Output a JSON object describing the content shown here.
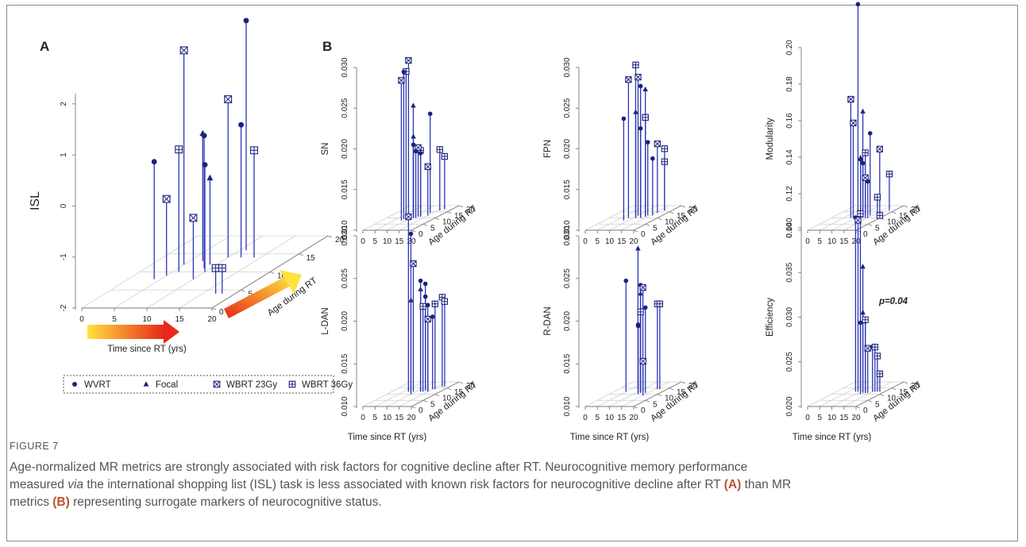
{
  "panel_labels": {
    "a": "A",
    "b": "B"
  },
  "colors": {
    "marker": "#1a237e",
    "stem": "#2a35b8",
    "arrow_start": "#ffe23c",
    "arrow_end": "#e8281a"
  },
  "legend": {
    "items": [
      {
        "symbol": "filled-circle",
        "label": "WVRT"
      },
      {
        "symbol": "filled-triangle",
        "label": "Focal"
      },
      {
        "symbol": "boxed-x",
        "label": "WBRT 23Gy"
      },
      {
        "symbol": "boxed-plus",
        "label": "WBRT 36Gy"
      }
    ]
  },
  "annotation": "p=0.04",
  "caption": {
    "figure_label": "FIGURE 7",
    "line1": "Age-normalized MR metrics are strongly associated with risk factors for cognitive decline after RT. Neurocognitive memory performance",
    "line2_a": "measured ",
    "line2_via": "via",
    "line2_b": " the international shopping list (ISL) task is less associated with known risk factors for neurocognitive decline after RT ",
    "line2_A": "(A)",
    "line2_c": " than MR",
    "line3_a": "metrics ",
    "line3_B": "(B)",
    "line3_b": " representing surrogate markers of neurocognitive status."
  },
  "chart_data": [
    {
      "type": "scatter3d",
      "panel": "A",
      "zlabel": "ISL",
      "xlabel": "Time since RT (yrs)",
      "ylabel": "Age during RT",
      "xticks": [
        "0",
        "5",
        "10",
        "15",
        "20"
      ],
      "yticks": [
        "0",
        "5",
        "10",
        "15",
        "20"
      ],
      "zticks": [
        "-2",
        "-1",
        "0",
        "1",
        "2"
      ],
      "zlim": [
        -2,
        2.2
      ],
      "points": [
        {
          "x": 5,
          "y": 12,
          "z": 2.2,
          "g": "WBRT 23Gy"
        },
        {
          "x": 4,
          "y": 8,
          "z": 0.3,
          "g": "WVRT"
        },
        {
          "x": 6,
          "y": 10,
          "z": 0.4,
          "g": "WBRT 36Gy"
        },
        {
          "x": 7,
          "y": 13,
          "z": 0.5,
          "g": "Focal"
        },
        {
          "x": 5,
          "y": 9,
          "z": -0.5,
          "g": "WBRT 23Gy"
        },
        {
          "x": 9,
          "y": 12,
          "z": -0.3,
          "g": "Focal"
        },
        {
          "x": 9,
          "y": 11,
          "z": 0.6,
          "g": "WVRT"
        },
        {
          "x": 10,
          "y": 10,
          "z": 0.1,
          "g": "WVRT"
        },
        {
          "x": 10,
          "y": 14,
          "z": 1.1,
          "g": "WBRT 23Gy"
        },
        {
          "x": 10,
          "y": 8,
          "z": -0.8,
          "g": "WBRT 23Gy"
        },
        {
          "x": 11,
          "y": 16,
          "z": 2.5,
          "g": "WVRT"
        },
        {
          "x": 12,
          "y": 14,
          "z": 0.6,
          "g": "WVRT"
        },
        {
          "x": 14,
          "y": 14,
          "z": 0.1,
          "g": "WBRT 36Gy"
        },
        {
          "x": 17,
          "y": 4,
          "z": -1.5,
          "g": "WBRT 36Gy"
        },
        {
          "x": 18,
          "y": 4,
          "z": -1.5,
          "g": "WBRT 36Gy"
        }
      ]
    },
    {
      "type": "scatter3d",
      "panel": "B1",
      "zlabel": "SN",
      "xlabel": "",
      "ylabel": "Age during RT",
      "xticks": [
        "0",
        "5",
        "10",
        "15",
        "20"
      ],
      "yticks": [
        "0",
        "5",
        "10",
        "15",
        "20"
      ],
      "zticks": [
        "0.010",
        "0.015",
        "0.020",
        "0.025",
        "0.030"
      ],
      "zlim": [
        0.01,
        0.03
      ],
      "points": [
        {
          "x": 8,
          "y": 8,
          "z": 0.0272,
          "g": "WBRT 23Gy"
        },
        {
          "x": 8,
          "y": 9,
          "z": 0.0281,
          "g": "WVRT"
        },
        {
          "x": 8,
          "y": 10,
          "z": 0.028,
          "g": "WBRT 36Gy"
        },
        {
          "x": 8,
          "y": 11,
          "z": 0.0292,
          "g": "WBRT 23Gy"
        },
        {
          "x": 9,
          "y": 12,
          "z": 0.0235,
          "g": "Focal"
        },
        {
          "x": 11,
          "y": 10,
          "z": 0.02,
          "g": "Focal"
        },
        {
          "x": 11,
          "y": 10,
          "z": 0.019,
          "g": "WVRT"
        },
        {
          "x": 12,
          "y": 10,
          "z": 0.0182,
          "g": "WVRT"
        },
        {
          "x": 12,
          "y": 11,
          "z": 0.0185,
          "g": "WBRT 23Gy"
        },
        {
          "x": 12,
          "y": 12,
          "z": 0.018,
          "g": "WBRT 36Gy"
        },
        {
          "x": 13,
          "y": 11,
          "z": 0.0178,
          "g": "WVRT"
        },
        {
          "x": 14,
          "y": 14,
          "z": 0.0222,
          "g": "WVRT"
        },
        {
          "x": 15,
          "y": 12,
          "z": 0.016,
          "g": "WBRT 23Gy"
        },
        {
          "x": 16,
          "y": 16,
          "z": 0.0175,
          "g": "WBRT 36Gy"
        },
        {
          "x": 17,
          "y": 17,
          "z": 0.0165,
          "g": "WBRT 36Gy"
        }
      ]
    },
    {
      "type": "scatter3d",
      "panel": "B2",
      "zlabel": "FPN",
      "xlabel": "",
      "ylabel": "Age during RT",
      "xticks": [
        "0",
        "5",
        "10",
        "15",
        "20"
      ],
      "yticks": [
        "0",
        "5",
        "10",
        "15",
        "20"
      ],
      "zticks": [
        "0.010",
        "0.015",
        "0.020",
        "0.025",
        "0.030"
      ],
      "zlim": [
        0.01,
        0.03
      ],
      "points": [
        {
          "x": 8,
          "y": 10,
          "z": 0.027,
          "g": "WBRT 23Gy"
        },
        {
          "x": 8,
          "y": 8,
          "z": 0.0225,
          "g": "WVRT"
        },
        {
          "x": 9,
          "y": 12,
          "z": 0.0285,
          "g": "WBRT 36Gy"
        },
        {
          "x": 10,
          "y": 12,
          "z": 0.027,
          "g": "WBRT 23Gy"
        },
        {
          "x": 11,
          "y": 10,
          "z": 0.023,
          "g": "Focal"
        },
        {
          "x": 13,
          "y": 12,
          "z": 0.0255,
          "g": "Focal"
        },
        {
          "x": 13,
          "y": 10,
          "z": 0.0262,
          "g": "WVRT"
        },
        {
          "x": 13,
          "y": 10,
          "z": 0.021,
          "g": "WVRT"
        },
        {
          "x": 14,
          "y": 11,
          "z": 0.0222,
          "g": "WBRT 23Gy"
        },
        {
          "x": 14,
          "y": 11,
          "z": 0.0222,
          "g": "WBRT 36Gy"
        },
        {
          "x": 14,
          "y": 12,
          "z": 0.019,
          "g": "WVRT"
        },
        {
          "x": 16,
          "y": 12,
          "z": 0.017,
          "g": "WVRT"
        },
        {
          "x": 16,
          "y": 14,
          "z": 0.0185,
          "g": "WBRT 23Gy"
        },
        {
          "x": 17,
          "y": 16,
          "z": 0.016,
          "g": "WBRT 36Gy"
        },
        {
          "x": 17,
          "y": 16,
          "z": 0.0176,
          "g": "WBRT 36Gy"
        }
      ]
    },
    {
      "type": "scatter3d",
      "panel": "B3",
      "zlabel": "Modularity",
      "xlabel": "",
      "ylabel": "Age during RT",
      "xticks": [
        "0",
        "5",
        "10",
        "15",
        "20"
      ],
      "yticks": [
        "0",
        "5",
        "10",
        "15",
        "20"
      ],
      "zticks": [
        "0.10",
        "0.12",
        "0.14",
        "0.16",
        "0.18",
        "0.20"
      ],
      "zlim": [
        0.1,
        0.2
      ],
      "points": [
        {
          "x": 8,
          "y": 10,
          "z": 0.165,
          "g": "WBRT 23Gy"
        },
        {
          "x": 8,
          "y": 13,
          "z": 0.215,
          "g": "WVRT"
        },
        {
          "x": 9,
          "y": 10,
          "z": 0.152,
          "g": "WBRT 23Gy"
        },
        {
          "x": 11,
          "y": 12,
          "z": 0.157,
          "g": "Focal"
        },
        {
          "x": 12,
          "y": 10,
          "z": 0.133,
          "g": "Focal"
        },
        {
          "x": 12,
          "y": 10,
          "z": 0.132,
          "g": "WVRT"
        },
        {
          "x": 13,
          "y": 10,
          "z": 0.13,
          "g": "WVRT"
        },
        {
          "x": 13,
          "y": 11,
          "z": 0.135,
          "g": "WBRT 36Gy"
        },
        {
          "x": 14,
          "y": 12,
          "z": 0.145,
          "g": "WVRT"
        },
        {
          "x": 14,
          "y": 10,
          "z": 0.122,
          "g": "WBRT 23Gy"
        },
        {
          "x": 15,
          "y": 10,
          "z": 0.12,
          "g": "WVRT"
        },
        {
          "x": 16,
          "y": 14,
          "z": 0.135,
          "g": "WBRT 23Gy"
        },
        {
          "x": 17,
          "y": 12,
          "z": 0.11,
          "g": "WBRT 36Gy"
        },
        {
          "x": 18,
          "y": 16,
          "z": 0.12,
          "g": "WBRT 36Gy"
        },
        {
          "x": 18,
          "y": 12,
          "z": 0.1,
          "g": "WBRT 36Gy"
        }
      ]
    },
    {
      "type": "scatter3d",
      "panel": "B4",
      "zlabel": "L-DAN",
      "xlabel": "Time since RT (yrs)",
      "ylabel": "Age during RT",
      "xticks": [
        "0",
        "5",
        "10",
        "15",
        "20"
      ],
      "yticks": [
        "0",
        "5",
        "10",
        "15",
        "20"
      ],
      "zticks": [
        "0.010",
        "0.015",
        "0.020",
        "0.025",
        "0.030"
      ],
      "zlim": [
        0.01,
        0.03
      ],
      "points": [
        {
          "x": 7,
          "y": 12,
          "z": 0.0305,
          "g": "WBRT 23Gy"
        },
        {
          "x": 8,
          "y": 12,
          "z": 0.0285,
          "g": "WVRT"
        },
        {
          "x": 9,
          "y": 12,
          "z": 0.025,
          "g": "WBRT 23Gy"
        },
        {
          "x": 10,
          "y": 10,
          "z": 0.021,
          "g": "Focal"
        },
        {
          "x": 12,
          "y": 12,
          "z": 0.022,
          "g": "Focal"
        },
        {
          "x": 12,
          "y": 12,
          "z": 0.023,
          "g": "WVRT"
        },
        {
          "x": 13,
          "y": 13,
          "z": 0.0225,
          "g": "WVRT"
        },
        {
          "x": 13,
          "y": 13,
          "z": 0.021,
          "g": "WVRT"
        },
        {
          "x": 13,
          "y": 12,
          "z": 0.02,
          "g": "WBRT 36Gy"
        },
        {
          "x": 14,
          "y": 13,
          "z": 0.02,
          "g": "WVRT"
        },
        {
          "x": 15,
          "y": 14,
          "z": 0.0185,
          "g": "WVRT"
        },
        {
          "x": 15,
          "y": 12,
          "z": 0.0185,
          "g": "WBRT 23Gy"
        },
        {
          "x": 16,
          "y": 14,
          "z": 0.02,
          "g": "WBRT 36Gy"
        },
        {
          "x": 17,
          "y": 16,
          "z": 0.0205,
          "g": "WBRT 36Gy"
        },
        {
          "x": 18,
          "y": 16,
          "z": 0.02,
          "g": "WBRT 36Gy"
        }
      ]
    },
    {
      "type": "scatter3d",
      "panel": "B5",
      "zlabel": "R-DAN",
      "xlabel": "Time since RT (yrs)",
      "ylabel": "Age during RT",
      "xticks": [
        "0",
        "5",
        "10",
        "15",
        "20"
      ],
      "yticks": [
        "0",
        "5",
        "10",
        "15",
        "20"
      ],
      "zticks": [
        "0.010",
        "0.015",
        "0.020",
        "0.025",
        "0.030"
      ],
      "zlim": [
        0.01,
        0.03
      ],
      "points": [
        {
          "x": 5,
          "y": 12,
          "z": 0.023,
          "g": "WVRT"
        },
        {
          "x": 8,
          "y": 14,
          "z": 0.0265,
          "g": "Focal"
        },
        {
          "x": 11,
          "y": 12,
          "z": 0.0215,
          "g": "Focal"
        },
        {
          "x": 11,
          "y": 12,
          "z": 0.0225,
          "g": "WVRT"
        },
        {
          "x": 12,
          "y": 12,
          "z": 0.0222,
          "g": "WBRT 23Gy"
        },
        {
          "x": 11,
          "y": 11,
          "z": 0.018,
          "g": "WVRT"
        },
        {
          "x": 12,
          "y": 11,
          "z": 0.0195,
          "g": "WBRT 36Gy"
        },
        {
          "x": 12,
          "y": 10,
          "z": 0.018,
          "g": "WVRT"
        },
        {
          "x": 14,
          "y": 11,
          "z": 0.02,
          "g": "WVRT"
        },
        {
          "x": 15,
          "y": 9,
          "z": 0.014,
          "g": "WBRT 23Gy"
        },
        {
          "x": 16,
          "y": 14,
          "z": 0.02,
          "g": "WBRT 36Gy"
        },
        {
          "x": 17,
          "y": 14,
          "z": 0.02,
          "g": "WBRT 36Gy"
        }
      ]
    },
    {
      "type": "scatter3d",
      "panel": "B6",
      "zlabel": "Efficiency",
      "xlabel": "Time since RT (yrs)",
      "ylabel": "Age during RT",
      "xticks": [
        "0",
        "5",
        "10",
        "15",
        "20"
      ],
      "yticks": [
        "0",
        "5",
        "10",
        "15",
        "20"
      ],
      "zticks": [
        "0.020",
        "0.025",
        "0.030",
        "0.035",
        "0.040"
      ],
      "zlim": [
        0.02,
        0.04
      ],
      "annotation": "p=0.04",
      "points": [
        {
          "x": 8,
          "y": 12,
          "z": 0.0395,
          "g": "WVRT"
        },
        {
          "x": 9,
          "y": 13,
          "z": 0.0398,
          "g": "WBRT 36Gy"
        },
        {
          "x": 9,
          "y": 12,
          "z": 0.0392,
          "g": "WBRT 23Gy"
        },
        {
          "x": 11,
          "y": 12,
          "z": 0.034,
          "g": "Focal"
        },
        {
          "x": 12,
          "y": 11,
          "z": 0.029,
          "g": "Focal"
        },
        {
          "x": 12,
          "y": 10,
          "z": 0.028,
          "g": "WVRT"
        },
        {
          "x": 13,
          "y": 11,
          "z": 0.028,
          "g": "WVRT"
        },
        {
          "x": 13,
          "y": 11,
          "z": 0.0282,
          "g": "WBRT 36Gy"
        },
        {
          "x": 14,
          "y": 11,
          "z": 0.025,
          "g": "WBRT 23Gy"
        },
        {
          "x": 15,
          "y": 12,
          "z": 0.025,
          "g": "WVRT"
        },
        {
          "x": 16,
          "y": 12,
          "z": 0.025,
          "g": "WBRT 36Gy"
        },
        {
          "x": 17,
          "y": 12,
          "z": 0.024,
          "g": "WBRT 36Gy"
        },
        {
          "x": 18,
          "y": 12,
          "z": 0.022,
          "g": "WBRT 36Gy"
        }
      ]
    }
  ]
}
